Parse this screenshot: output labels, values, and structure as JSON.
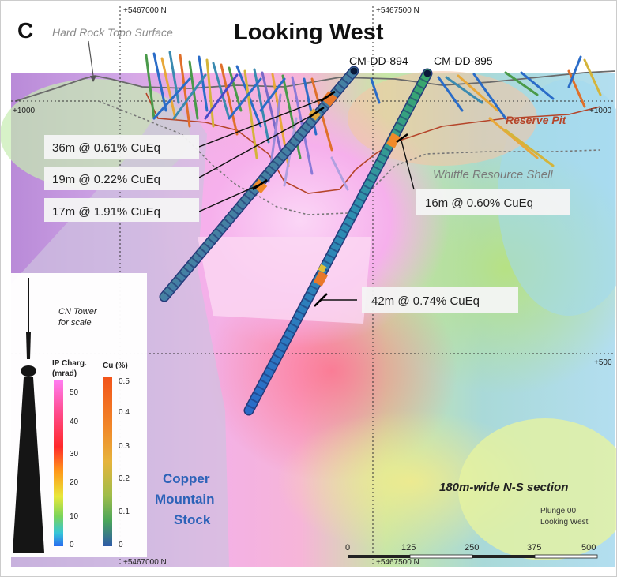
{
  "panel_letter": "C",
  "view_title": "Looking West",
  "labels": {
    "topo_surface": "Hard Rock Topo Surface",
    "reserve_pit": "Reserve Pit",
    "whittle_shell": "Whittle Resource Shell",
    "stock": [
      "Copper",
      "Mountain",
      "Stock"
    ],
    "section_width": "180m-wide N-S section",
    "plunge": "Plunge 00",
    "looking_west_small": "Looking West"
  },
  "grid": {
    "northing_top_left": "+5467000 N",
    "northing_top_right": "+5467500 N",
    "northing_bottom_left": "+5467000 N",
    "northing_bottom_right": "+5467500 N",
    "elev_left": "+1000",
    "elev_right_upper": "+1000",
    "elev_right_lower": "+500"
  },
  "drillholes": [
    {
      "id": "CM-DD-894"
    },
    {
      "id": "CM-DD-895"
    }
  ],
  "intercepts": [
    {
      "label": "36m @ 0.61% CuEq",
      "hole": "CM-DD-894"
    },
    {
      "label": "19m @ 0.22% CuEq",
      "hole": "CM-DD-894"
    },
    {
      "label": "17m @ 1.91% CuEq",
      "hole": "CM-DD-894"
    },
    {
      "label": "16m @ 0.60% CuEq",
      "hole": "CM-DD-895"
    },
    {
      "label": "42m @ 0.74% CuEq",
      "hole": "CM-DD-895"
    }
  ],
  "legend": {
    "tower_caption": [
      "CN Tower",
      "for scale"
    ],
    "ip_title": [
      "IP Charg.",
      "(mrad)"
    ],
    "ip_ticks": [
      "50",
      "40",
      "30",
      "20",
      "10",
      "0"
    ],
    "cu_title": "Cu (%)",
    "cu_ticks": [
      "0.5",
      "0.4",
      "0.3",
      "0.2",
      "0.1",
      "0"
    ]
  },
  "scale_bar": {
    "ticks": [
      "0",
      "125",
      "250",
      "375",
      "500"
    ]
  },
  "colors": {
    "reserve_pit": "#b5452a",
    "whittle": "#7a7a7a",
    "stock_text": "#2c62b8",
    "drill_collar": "#0b1a3a"
  }
}
